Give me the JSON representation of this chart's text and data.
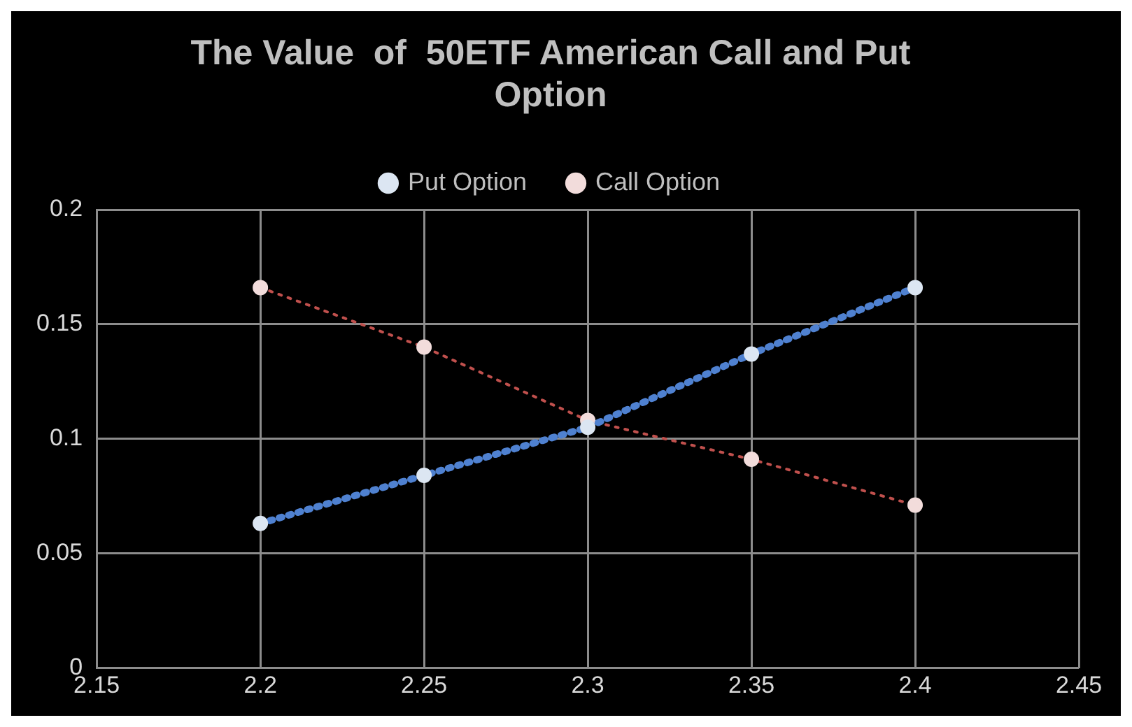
{
  "chart_data": {
    "type": "line",
    "title": "The Value  of  50ETF American Call and Put Option",
    "x": [
      2.2,
      2.25,
      2.3,
      2.35,
      2.4
    ],
    "series": [
      {
        "name": "Put Option",
        "color": "#4f81d0",
        "values": [
          0.063,
          0.084,
          0.105,
          0.137,
          0.166
        ]
      },
      {
        "name": "Call Option",
        "color": "#c0504d",
        "values": [
          0.166,
          0.14,
          0.108,
          0.091,
          0.071
        ]
      }
    ],
    "xlim": [
      2.15,
      2.45
    ],
    "xticks": [
      2.15,
      2.2,
      2.25,
      2.3,
      2.35,
      2.4,
      2.45
    ],
    "ylim": [
      0,
      0.2
    ],
    "yticks": [
      0,
      0.05,
      0.1,
      0.15,
      0.2
    ],
    "grid": true,
    "legend": "top",
    "marker": "circle",
    "line_style": "dotted"
  }
}
